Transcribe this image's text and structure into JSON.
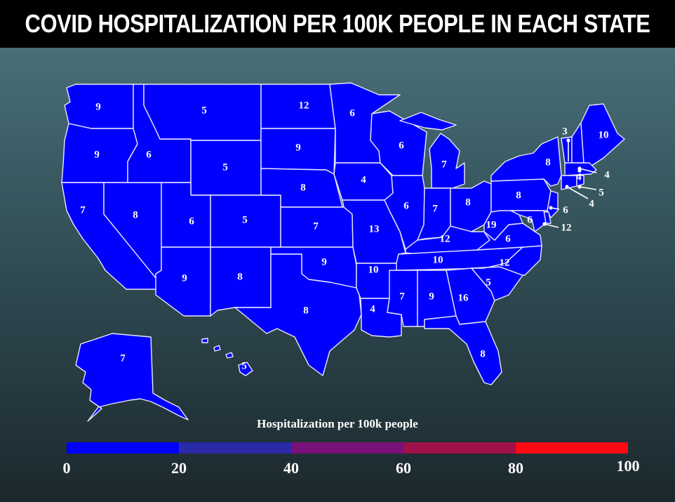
{
  "title": "COVID HOSPITALIZATION PER 100K PEOPLE IN EACH STATE",
  "legend": {
    "title": "Hospitalization per 100k people",
    "ticks": [
      "0",
      "20",
      "40",
      "60",
      "80",
      "100"
    ],
    "range": [
      0,
      100
    ],
    "segment_colors": [
      "#0000ff",
      "#2a2aa8",
      "#4a1a9a",
      "#7a107a",
      "#a0104a",
      "#ff0a14"
    ]
  },
  "map_fill_color": "#0000ff",
  "states": [
    {
      "name": "Washington",
      "value": 9
    },
    {
      "name": "Oregon",
      "value": 9
    },
    {
      "name": "California",
      "value": 7
    },
    {
      "name": "Nevada",
      "value": 8
    },
    {
      "name": "Idaho",
      "value": 6
    },
    {
      "name": "Montana",
      "value": 5
    },
    {
      "name": "Wyoming",
      "value": 5
    },
    {
      "name": "Utah",
      "value": 6
    },
    {
      "name": "Arizona",
      "value": 9
    },
    {
      "name": "Colorado",
      "value": 5
    },
    {
      "name": "New Mexico",
      "value": 8
    },
    {
      "name": "North Dakota",
      "value": 12
    },
    {
      "name": "South Dakota",
      "value": 9
    },
    {
      "name": "Nebraska",
      "value": 8
    },
    {
      "name": "Kansas",
      "value": 7
    },
    {
      "name": "Oklahoma",
      "value": 9
    },
    {
      "name": "Texas",
      "value": 8
    },
    {
      "name": "Minnesota",
      "value": 6
    },
    {
      "name": "Iowa",
      "value": 4
    },
    {
      "name": "Missouri",
      "value": 13
    },
    {
      "name": "Arkansas",
      "value": 10
    },
    {
      "name": "Louisiana",
      "value": 4
    },
    {
      "name": "Wisconsin",
      "value": 6
    },
    {
      "name": "Illinois",
      "value": 6
    },
    {
      "name": "Michigan",
      "value": 7
    },
    {
      "name": "Indiana",
      "value": 7
    },
    {
      "name": "Ohio",
      "value": 8
    },
    {
      "name": "Kentucky",
      "value": 12
    },
    {
      "name": "Tennessee",
      "value": 10
    },
    {
      "name": "Mississippi",
      "value": 7
    },
    {
      "name": "Alabama",
      "value": 9
    },
    {
      "name": "Georgia",
      "value": 16
    },
    {
      "name": "Florida",
      "value": 8
    },
    {
      "name": "South Carolina",
      "value": 5
    },
    {
      "name": "North Carolina",
      "value": 12
    },
    {
      "name": "Virginia",
      "value": 6
    },
    {
      "name": "West Virginia",
      "value": 19
    },
    {
      "name": "Pennsylvania",
      "value": 8
    },
    {
      "name": "New York",
      "value": 8
    },
    {
      "name": "Vermont",
      "value": 3
    },
    {
      "name": "New Hampshire",
      "value": 4
    },
    {
      "name": "Maine",
      "value": 10
    },
    {
      "name": "Massachusetts",
      "value": 4
    },
    {
      "name": "Rhode Island",
      "value": 5
    },
    {
      "name": "Connecticut",
      "value": 4
    },
    {
      "name": "New Jersey",
      "value": 6
    },
    {
      "name": "Delaware",
      "value": 12
    },
    {
      "name": "Maryland",
      "value": 6
    },
    {
      "name": "Alaska",
      "value": 7
    },
    {
      "name": "Hawaii",
      "value": 5
    }
  ]
}
